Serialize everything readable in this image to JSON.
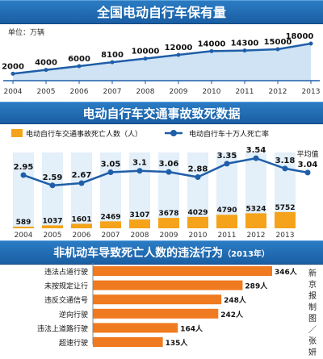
{
  "colors": {
    "banner": "#1a5ea3",
    "line": "#1f5ea8",
    "bar": "#f5a31a",
    "bar_bg": "#e3eff9",
    "hbar": "#f07a1f"
  },
  "header": {
    "title1": "全国电动自行车保有量",
    "unit": "单位：万辆",
    "title2": "电动自行车交通事故致死数据",
    "title3": "非机动车导致死亡人数的违法行为",
    "title3_sub": "（2013年）",
    "credit": "新京报制图／张妍"
  },
  "chart_data": [
    {
      "type": "area",
      "title": "全国电动自行车保有量",
      "ylabel": "单位：万辆",
      "x": [
        "2004",
        "2005",
        "2006",
        "2007",
        "2008",
        "2009",
        "2010",
        "2011",
        "2012",
        "2013"
      ],
      "series": [
        {
          "values": [
            2000,
            4000,
            6000,
            8100,
            10000,
            12000,
            14000,
            14300,
            15000,
            18000
          ]
        }
      ],
      "value_labels": [
        "2000",
        "4000",
        "6000",
        "8100",
        "10000",
        "12000",
        "14000",
        "14300",
        "15000",
        "18000"
      ]
    },
    {
      "type": "bar",
      "title": "电动自行车交通事故致死数据",
      "categories": [
        "2004",
        "2005",
        "2006",
        "2007",
        "2008",
        "2009",
        "2010",
        "2011",
        "2012",
        "2013"
      ],
      "legend_position": "top",
      "series": [
        {
          "name": "电动自行车交通事故死亡人数（人）",
          "type": "bar",
          "values": [
            589,
            1037,
            1601,
            2469,
            3107,
            3678,
            4029,
            4790,
            5324,
            5752
          ],
          "labels": [
            "589",
            "1037",
            "1601",
            "2469",
            "3107",
            "3678",
            "4029",
            "4790",
            "5324",
            "5752"
          ]
        },
        {
          "name": "电动自行车十万人死亡率",
          "type": "line",
          "values": [
            2.95,
            2.59,
            2.67,
            3.05,
            3.1,
            3.06,
            2.88,
            3.35,
            3.54,
            3.18
          ],
          "labels": [
            "2.95",
            "2.59",
            "2.67",
            "3.05",
            "3.1",
            "3.06",
            "2.88",
            "3.35",
            "3.54",
            "3.18"
          ]
        }
      ],
      "average": {
        "label": "平均值",
        "value": 3.04,
        "value_label": "3.04"
      }
    },
    {
      "type": "bar",
      "orientation": "horizontal",
      "title": "非机动车导致死亡人数的违法行为（2013年）",
      "categories": [
        "违法占道行驶",
        "未按规定让行",
        "违反交通信号",
        "逆向行驶",
        "违法上道路行驶",
        "超速行驶"
      ],
      "values": [
        346,
        289,
        248,
        242,
        164,
        135
      ],
      "value_labels": [
        "346人",
        "289人",
        "248人",
        "242人",
        "164人",
        "135人"
      ]
    }
  ]
}
